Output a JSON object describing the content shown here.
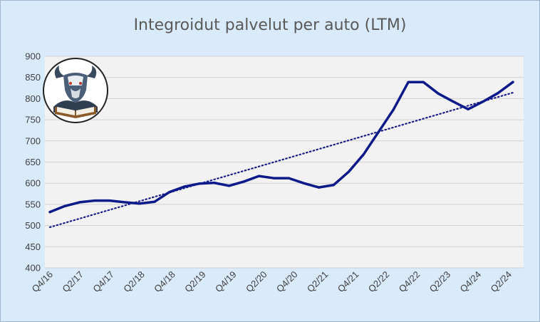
{
  "chart_data": {
    "type": "line",
    "title": "Integroidut palvelut per auto (LTM)",
    "ylim": [
      400,
      900
    ],
    "yticks": [
      400,
      450,
      500,
      550,
      600,
      650,
      700,
      750,
      800,
      850,
      900
    ],
    "x_labels": [
      "Q4/16",
      "Q2/17",
      "Q4/17",
      "Q2/18",
      "Q4/18",
      "Q2/19",
      "Q4/19",
      "Q2/20",
      "Q4/20",
      "Q2/21",
      "Q4/21",
      "Q2/22",
      "Q4/22",
      "Q2/23",
      "Q4/24",
      "Q2/24"
    ],
    "grid": true,
    "legend": "none",
    "series": [
      {
        "style": "solid",
        "color": "#0d1a8a",
        "values": [
          532,
          546,
          555,
          559,
          559,
          555,
          552,
          556,
          579,
          592,
          599,
          601,
          594,
          604,
          617,
          612,
          612,
          600,
          590,
          596,
          627,
          668,
          721,
          774,
          839,
          839,
          812,
          793,
          775,
          793,
          813,
          839
        ]
      },
      {
        "style": "dotted",
        "color": "#1a1f8a",
        "kind": "linear trendline",
        "values": [
          496,
          814
        ]
      }
    ]
  },
  "logo": {
    "kind": "bull-reading-book-emblem"
  },
  "colors": {
    "background": "#d9eafb",
    "plot_area": "#f2f2f2",
    "gridline": "#d0d0d0",
    "line": "#0d1a8a"
  }
}
